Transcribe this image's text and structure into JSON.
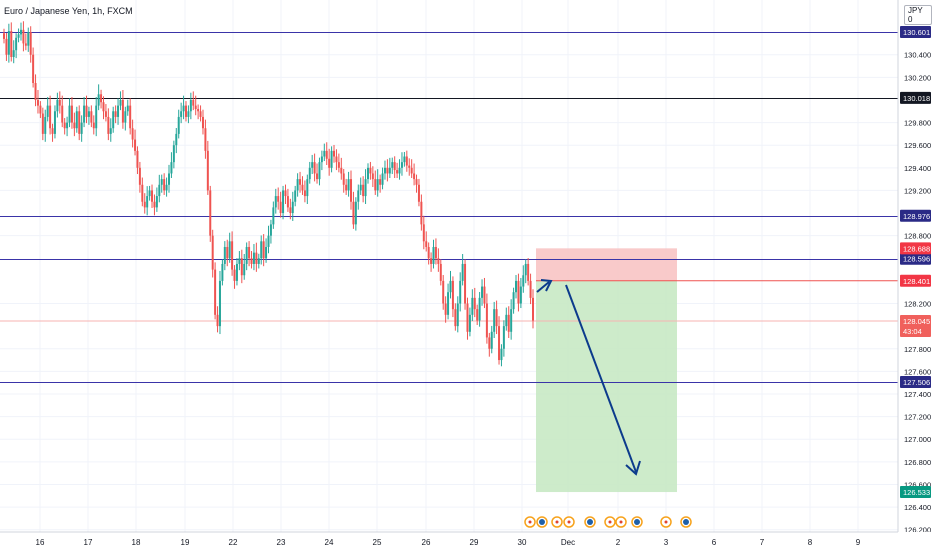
{
  "header": {
    "title": "Euro / Japanese Yen, 1h, FXCM",
    "currency": "JPY 0"
  },
  "chart_data": {
    "type": "candlestick",
    "title": "Euro / Japanese Yen, 1h, FXCM",
    "ylim": [
      126.2,
      130.78
    ],
    "y_ticks": [
      "130.400",
      "130.200",
      "129.800",
      "129.600",
      "129.400",
      "129.200",
      "128.800",
      "128.200",
      "127.800",
      "127.600",
      "127.400",
      "127.200",
      "127.000",
      "126.800",
      "126.600",
      "126.400",
      "126.200"
    ],
    "x_ticks": [
      "16",
      "17",
      "18",
      "19",
      "22",
      "23",
      "24",
      "25",
      "26",
      "29",
      "30",
      "Dec",
      "2",
      "3",
      "6",
      "7",
      "8",
      "9"
    ],
    "horizontal_lines": [
      {
        "price": 130.601,
        "label": "130.601",
        "color": "#3a34a8"
      },
      {
        "price": 130.018,
        "label": "130.018",
        "color": "#131722"
      },
      {
        "price": 128.976,
        "label": "128.976",
        "color": "#3a34a8"
      },
      {
        "price": 128.596,
        "label": "128.596",
        "color": "#3a34a8"
      },
      {
        "price": 127.506,
        "label": "127.506",
        "color": "#3a34a8"
      }
    ],
    "position": {
      "entry": 128.401,
      "entry_label": "128.401",
      "stop": 128.688,
      "stop_label": "128.688",
      "target": 126.533,
      "target_label": "126.533"
    },
    "last_price": {
      "value": 128.045,
      "label": "128.045",
      "countdown": "43:04"
    },
    "candles": [
      130.54,
      130.4,
      130.61,
      130.38,
      130.44,
      130.55,
      130.58,
      130.62,
      130.5,
      130.48,
      130.6,
      130.4,
      130.15,
      130.0,
      129.95,
      129.88,
      129.7,
      129.85,
      129.95,
      129.75,
      129.7,
      129.9,
      130.0,
      129.95,
      129.8,
      129.75,
      129.8,
      129.95,
      129.8,
      129.75,
      129.9,
      129.7,
      129.8,
      129.95,
      129.85,
      129.9,
      129.8,
      129.75,
      129.95,
      130.05,
      129.98,
      129.9,
      129.85,
      129.7,
      129.75,
      129.9,
      129.85,
      129.95,
      130.0,
      129.8,
      129.9,
      129.95,
      129.75,
      129.65,
      129.55,
      129.4,
      129.25,
      129.1,
      129.05,
      129.15,
      129.2,
      129.1,
      129.05,
      129.15,
      129.25,
      129.3,
      129.2,
      129.25,
      129.35,
      129.45,
      129.6,
      129.7,
      129.85,
      129.9,
      129.95,
      129.85,
      129.9,
      130.0,
      129.95,
      129.92,
      129.9,
      129.85,
      129.75,
      129.55,
      129.2,
      128.8,
      128.5,
      128.1,
      128.0,
      128.4,
      128.55,
      128.7,
      128.6,
      128.75,
      128.5,
      128.4,
      128.55,
      128.6,
      128.45,
      128.55,
      128.7,
      128.6,
      128.55,
      128.65,
      128.55,
      128.6,
      128.75,
      128.6,
      128.7,
      128.8,
      128.9,
      129.05,
      129.15,
      129.1,
      129.0,
      129.2,
      129.15,
      129.05,
      129.0,
      129.1,
      129.2,
      129.3,
      129.25,
      129.2,
      129.15,
      129.3,
      129.4,
      129.45,
      129.35,
      129.3,
      129.45,
      129.5,
      129.55,
      129.48,
      129.4,
      129.55,
      129.5,
      129.45,
      129.4,
      129.35,
      129.25,
      129.2,
      129.3,
      129.1,
      128.9,
      129.1,
      129.2,
      129.25,
      129.15,
      129.3,
      129.4,
      129.35,
      129.3,
      129.2,
      129.3,
      129.25,
      129.35,
      129.4,
      129.35,
      129.4,
      129.45,
      129.38,
      129.35,
      129.4,
      129.45,
      129.5,
      129.42,
      129.4,
      129.35,
      129.3,
      129.25,
      129.1,
      128.9,
      128.75,
      128.7,
      128.6,
      128.55,
      128.7,
      128.6,
      128.55,
      128.4,
      128.2,
      128.1,
      128.3,
      128.4,
      128.15,
      128.0,
      128.2,
      128.4,
      128.55,
      128.2,
      127.95,
      128.1,
      128.25,
      128.15,
      128.05,
      128.25,
      128.35,
      128.2,
      127.9,
      127.8,
      127.95,
      128.15,
      128.0,
      127.7,
      127.8,
      128.0,
      128.1,
      127.95,
      128.15,
      128.3,
      128.4,
      128.2,
      128.35,
      128.45,
      128.55,
      128.4,
      128.25,
      128.05
    ]
  },
  "x_axis_icons": [
    {
      "name": "event-icon",
      "kind": "dot"
    },
    {
      "name": "event-icon",
      "kind": "flag"
    },
    {
      "name": "event-icon",
      "kind": "dot"
    },
    {
      "name": "event-icon",
      "kind": "dot"
    },
    {
      "name": "event-icon",
      "kind": "flag"
    },
    {
      "name": "event-icon",
      "kind": "dot"
    },
    {
      "name": "event-icon",
      "kind": "dot"
    },
    {
      "name": "event-icon",
      "kind": "flag"
    },
    {
      "name": "event-icon",
      "kind": "dot"
    },
    {
      "name": "event-icon",
      "kind": "flag"
    }
  ],
  "colors": {
    "up": "#26a69a",
    "down": "#ef5350",
    "grid": "#f0f3fa",
    "axis_text": "#131722",
    "line_blue": "#3a34a8",
    "risk_fill": "#f8c4c4",
    "reward_fill": "#c8e9c4",
    "arrow": "#0c3b8c",
    "last_price": "#f0605c"
  }
}
